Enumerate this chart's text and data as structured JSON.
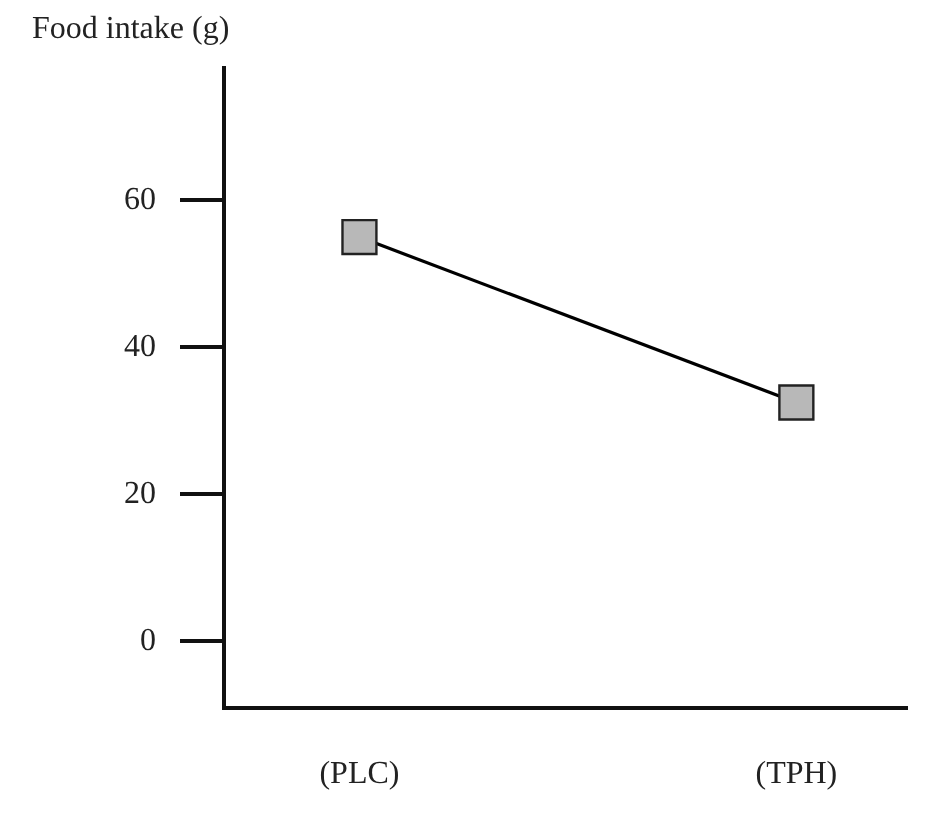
{
  "chart_data": {
    "type": "line",
    "ylabel": "Food intake (g)",
    "categories": [
      "(PLC)",
      "(TPH)"
    ],
    "series": [
      {
        "color": "#000000",
        "values": [
          55,
          32.5
        ]
      }
    ],
    "ylim": [
      -9,
      78
    ],
    "yticks": [
      0,
      20,
      40,
      60
    ],
    "grid": false,
    "legend": false,
    "marker": "square",
    "line_style": "solid"
  }
}
